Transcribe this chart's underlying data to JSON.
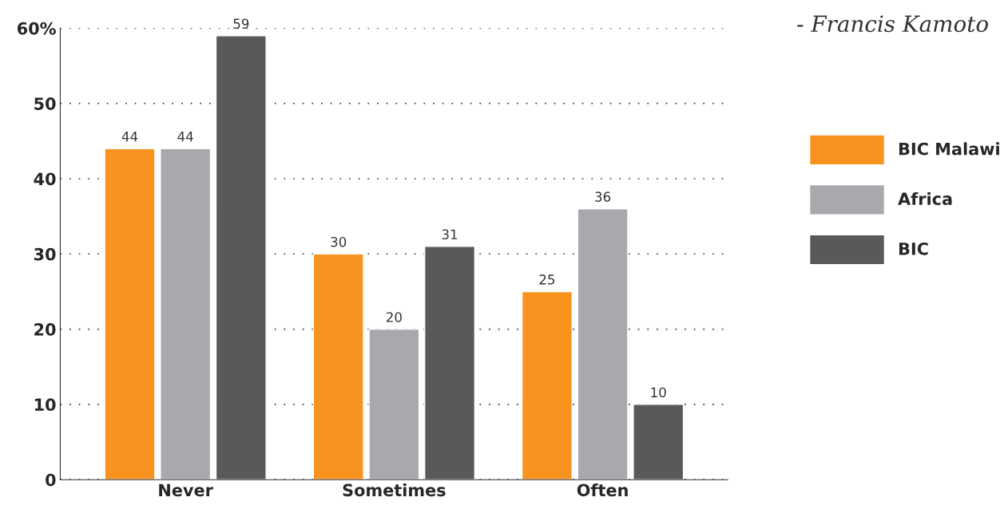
{
  "chart_data": {
    "type": "bar",
    "categories": [
      "Never",
      "Sometimes",
      "Often"
    ],
    "series": [
      {
        "name": "BIC Malawi",
        "color": "#f7931e",
        "values": [
          44,
          30,
          25
        ]
      },
      {
        "name": "Africa",
        "color": "#a7a9ac",
        "values": [
          44,
          20,
          36
        ]
      },
      {
        "name": "BIC",
        "color": "#58595b",
        "values": [
          59,
          31,
          10
        ]
      }
    ],
    "ylim": [
      0,
      60
    ],
    "yticks": [
      0,
      10,
      20,
      30,
      40,
      50,
      {
        "value": 60,
        "label": "60%"
      }
    ],
    "grid": "y",
    "legend": "right",
    "data_labels": true,
    "annotations": [
      "- Francis Kamoto"
    ]
  }
}
